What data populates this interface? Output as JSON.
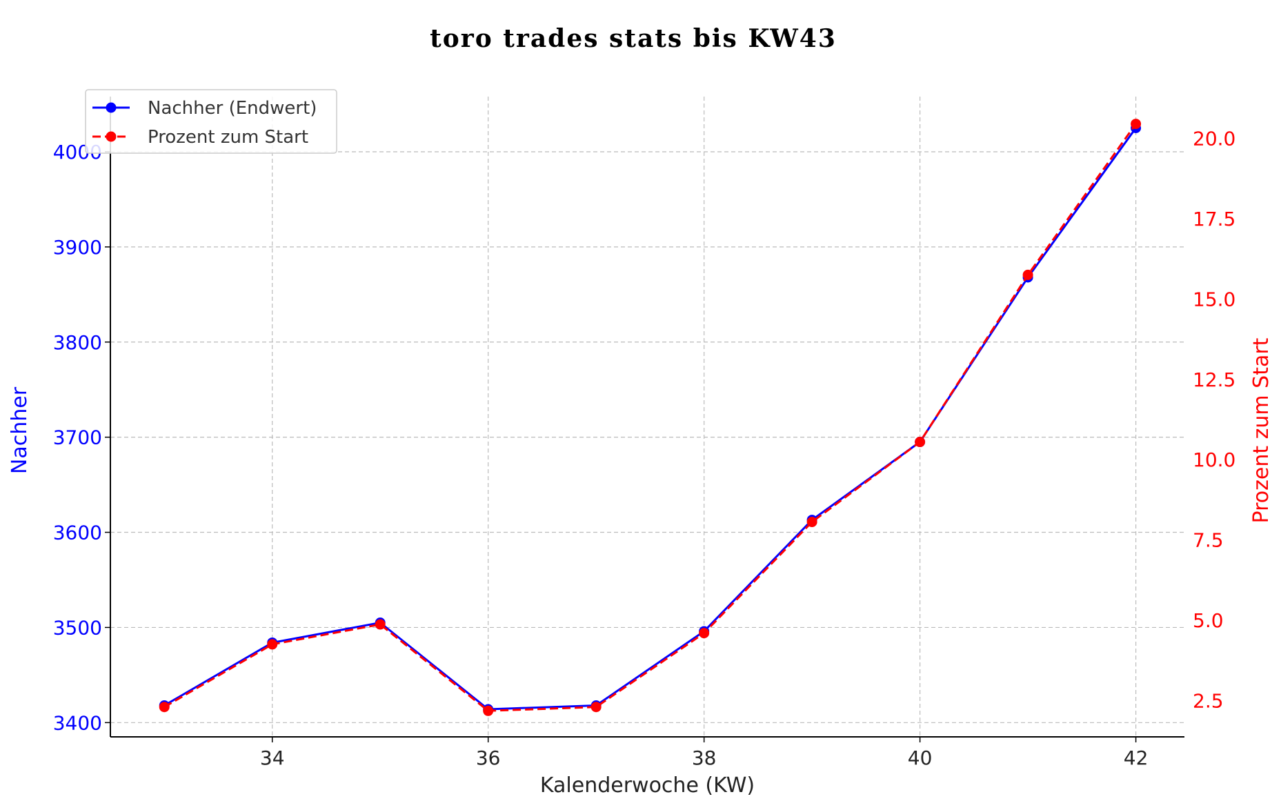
{
  "chart_data": {
    "type": "line",
    "title": "toro trades stats bis KW43",
    "xlabel": "Kalenderwoche (KW)",
    "ylabel": "Nachher",
    "ylabel_right": "Prozent zum Start",
    "x": [
      33,
      34,
      35,
      36,
      37,
      38,
      39,
      40,
      41,
      42
    ],
    "xlim": [
      32.5,
      42.45
    ],
    "x_ticks": [
      34,
      36,
      38,
      40,
      42
    ],
    "ylim": [
      3385,
      4058
    ],
    "y_ticks": [
      3400,
      3500,
      3600,
      3700,
      3800,
      3900,
      4000
    ],
    "ylim_right": [
      1.37,
      21.3
    ],
    "y_ticks_right": [
      "2.5",
      "5.0",
      "7.5",
      "10.0",
      "12.5",
      "15.0",
      "17.5",
      "20.0"
    ],
    "grid": true,
    "legend_position": "top-left",
    "series": [
      {
        "name": "Nachher (Endwert)",
        "axis": "left",
        "color": "#0000ff",
        "line_style": "solid",
        "marker": "circle",
        "values": [
          3418,
          3484,
          3505,
          3414,
          3418,
          3496,
          3613,
          3695,
          3868,
          4025
        ]
      },
      {
        "name": "Prozent zum Start",
        "axis": "right",
        "color": "#ff0000",
        "line_style": "dashed",
        "marker": "circle",
        "values": [
          2.3,
          4.25,
          4.87,
          2.18,
          2.3,
          4.6,
          8.06,
          10.55,
          15.75,
          20.45
        ]
      }
    ],
    "colors": {
      "left_axis": "#0000ff",
      "right_axis": "#ff0000",
      "text": "#222222"
    }
  }
}
